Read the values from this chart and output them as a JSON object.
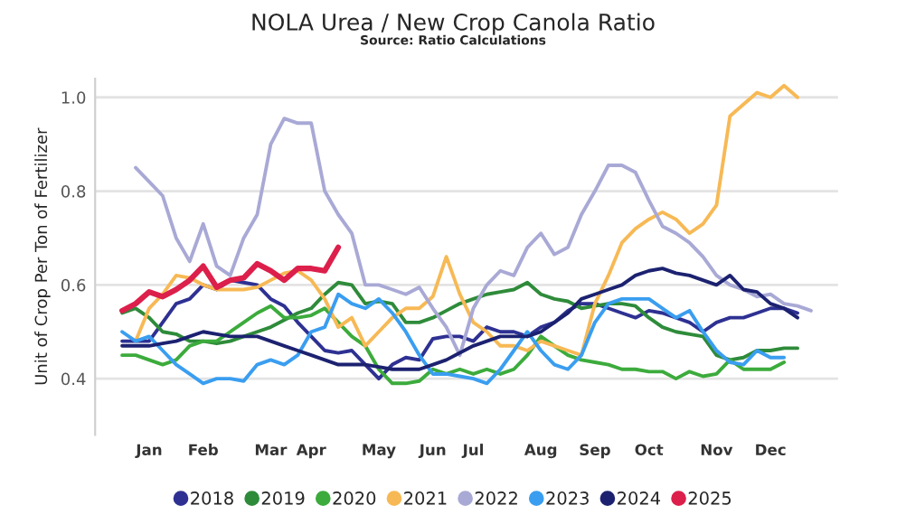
{
  "chart_data": {
    "type": "line",
    "title": "NOLA Urea / New Crop Canola Ratio",
    "annotations": [
      "Source: Ratio Calculations"
    ],
    "ylabel": "Unit of Crop Per Ton of Fertilizer",
    "categories": [
      null,
      null,
      "Jan",
      null,
      null,
      null,
      "Feb",
      null,
      null,
      null,
      null,
      "Mar",
      null,
      null,
      "Apr",
      null,
      null,
      null,
      null,
      "May",
      null,
      null,
      null,
      "Jun",
      null,
      null,
      "Jul",
      null,
      null,
      null,
      null,
      "Aug",
      null,
      null,
      null,
      "Sep",
      null,
      null,
      null,
      "Oct",
      null,
      null,
      null,
      null,
      "Nov",
      null,
      null,
      null,
      "Dec",
      null,
      null,
      null
    ],
    "ylim": [
      0.28,
      1.04
    ],
    "yticks": [
      0.4,
      0.6,
      0.8,
      {
        "value": 1.0,
        "label": "1.0"
      }
    ],
    "grid": "y",
    "legend": "bottom",
    "marker": "none",
    "line_style": "solid",
    "series": [
      {
        "name": "2018",
        "color": "#2e3192",
        "values": [
          0.48,
          0.48,
          0.48,
          0.52,
          0.56,
          0.57,
          0.6,
          0.59,
          0.61,
          0.605,
          0.6,
          0.57,
          0.555,
          0.52,
          0.49,
          0.46,
          0.455,
          0.46,
          0.43,
          0.4,
          0.43,
          0.445,
          0.44,
          0.485,
          0.49,
          0.49,
          0.48,
          0.51,
          0.5,
          0.5,
          0.49,
          0.51,
          0.52,
          0.545,
          0.56,
          0.56,
          0.55,
          0.54,
          0.53,
          0.545,
          0.54,
          0.53,
          0.52,
          0.5,
          0.52,
          0.53,
          0.53,
          0.54,
          0.55,
          0.55,
          0.54,
          null
        ]
      },
      {
        "name": "2019",
        "color": "#2e8b3a",
        "values": [
          0.54,
          0.55,
          0.53,
          0.5,
          0.495,
          0.48,
          0.48,
          0.475,
          0.48,
          0.49,
          0.5,
          0.51,
          0.525,
          0.54,
          0.55,
          0.58,
          0.605,
          0.6,
          0.56,
          0.565,
          0.56,
          0.52,
          0.52,
          0.53,
          0.545,
          0.56,
          0.57,
          0.58,
          0.585,
          0.59,
          0.605,
          0.58,
          0.57,
          0.565,
          0.55,
          0.555,
          0.56,
          0.56,
          0.555,
          0.53,
          0.51,
          0.5,
          0.495,
          0.49,
          0.45,
          0.44,
          0.445,
          0.46,
          0.46,
          0.465,
          0.465,
          null
        ]
      },
      {
        "name": "2020",
        "color": "#3cab3c",
        "values": [
          0.45,
          0.45,
          0.44,
          0.43,
          0.44,
          0.47,
          0.48,
          0.48,
          0.5,
          0.52,
          0.54,
          0.555,
          0.53,
          0.53,
          0.535,
          0.55,
          0.52,
          0.49,
          0.47,
          0.42,
          0.39,
          0.39,
          0.395,
          0.42,
          0.41,
          0.42,
          0.41,
          0.42,
          0.41,
          0.42,
          0.45,
          0.49,
          0.47,
          0.45,
          0.44,
          0.435,
          0.43,
          0.42,
          0.42,
          0.415,
          0.415,
          0.4,
          0.415,
          0.405,
          0.41,
          0.44,
          0.42,
          0.42,
          0.42,
          0.435,
          null,
          null
        ]
      },
      {
        "name": "2021",
        "color": "#f7b955",
        "values": [
          null,
          0.48,
          0.55,
          0.58,
          0.62,
          0.615,
          0.6,
          0.59,
          0.59,
          0.59,
          0.595,
          0.61,
          0.625,
          0.63,
          0.61,
          0.57,
          0.51,
          0.53,
          0.47,
          0.5,
          0.53,
          0.55,
          0.55,
          0.575,
          0.66,
          0.58,
          0.52,
          0.5,
          0.47,
          0.47,
          0.46,
          0.48,
          0.47,
          0.46,
          0.45,
          0.56,
          0.62,
          0.69,
          0.72,
          0.74,
          0.755,
          0.74,
          0.71,
          0.73,
          0.77,
          0.96,
          0.985,
          1.01,
          1.0,
          1.025,
          1.0,
          null
        ]
      },
      {
        "name": "2022",
        "color": "#a9a9d6",
        "values": [
          null,
          0.85,
          0.82,
          0.79,
          0.7,
          0.65,
          0.73,
          0.64,
          0.62,
          0.7,
          0.75,
          0.9,
          0.955,
          0.945,
          0.945,
          0.8,
          0.75,
          0.71,
          0.6,
          0.6,
          0.59,
          0.58,
          0.595,
          0.55,
          0.51,
          0.45,
          0.55,
          0.6,
          0.63,
          0.62,
          0.68,
          0.71,
          0.665,
          0.68,
          0.75,
          0.8,
          0.855,
          0.855,
          0.84,
          0.78,
          0.725,
          0.71,
          0.69,
          0.66,
          0.62,
          0.6,
          0.59,
          0.575,
          0.58,
          0.56,
          0.555,
          0.545
        ]
      },
      {
        "name": "2023",
        "color": "#3a9ef0",
        "values": [
          0.5,
          0.48,
          0.49,
          0.46,
          0.43,
          0.41,
          0.39,
          0.4,
          0.4,
          0.395,
          0.43,
          0.44,
          0.43,
          0.45,
          0.5,
          0.51,
          0.58,
          0.56,
          0.55,
          0.57,
          0.54,
          0.5,
          0.45,
          0.41,
          0.41,
          0.405,
          0.4,
          0.39,
          0.42,
          0.46,
          0.5,
          0.46,
          0.43,
          0.42,
          0.45,
          0.52,
          0.56,
          0.57,
          0.57,
          0.57,
          0.55,
          0.53,
          0.545,
          0.5,
          0.46,
          0.435,
          0.43,
          0.46,
          0.445,
          0.445,
          null,
          null
        ]
      },
      {
        "name": "2024",
        "color": "#1c2270",
        "values": [
          0.47,
          0.47,
          0.47,
          0.475,
          0.48,
          0.49,
          0.5,
          0.495,
          0.49,
          0.49,
          0.49,
          0.48,
          0.47,
          0.46,
          0.45,
          0.44,
          0.43,
          0.43,
          0.43,
          0.425,
          0.42,
          0.42,
          0.42,
          0.43,
          0.44,
          0.455,
          0.47,
          0.48,
          0.49,
          0.49,
          0.49,
          0.5,
          0.52,
          0.54,
          0.57,
          0.58,
          0.59,
          0.6,
          0.62,
          0.63,
          0.635,
          0.625,
          0.62,
          0.61,
          0.6,
          0.62,
          0.59,
          0.585,
          0.56,
          0.55,
          0.53,
          null
        ]
      },
      {
        "name": "2025",
        "color": "#dc1f4b",
        "values": [
          0.545,
          0.56,
          0.585,
          0.575,
          0.59,
          0.61,
          0.64,
          0.595,
          0.61,
          0.615,
          0.645,
          0.63,
          0.61,
          0.635,
          0.635,
          0.63,
          0.68,
          null,
          null,
          null,
          null,
          null,
          null,
          null,
          null,
          null,
          null,
          null,
          null,
          null,
          null,
          null,
          null,
          null,
          null,
          null,
          null,
          null,
          null,
          null,
          null,
          null,
          null,
          null,
          null,
          null,
          null,
          null,
          null,
          null,
          null,
          null
        ]
      }
    ]
  }
}
